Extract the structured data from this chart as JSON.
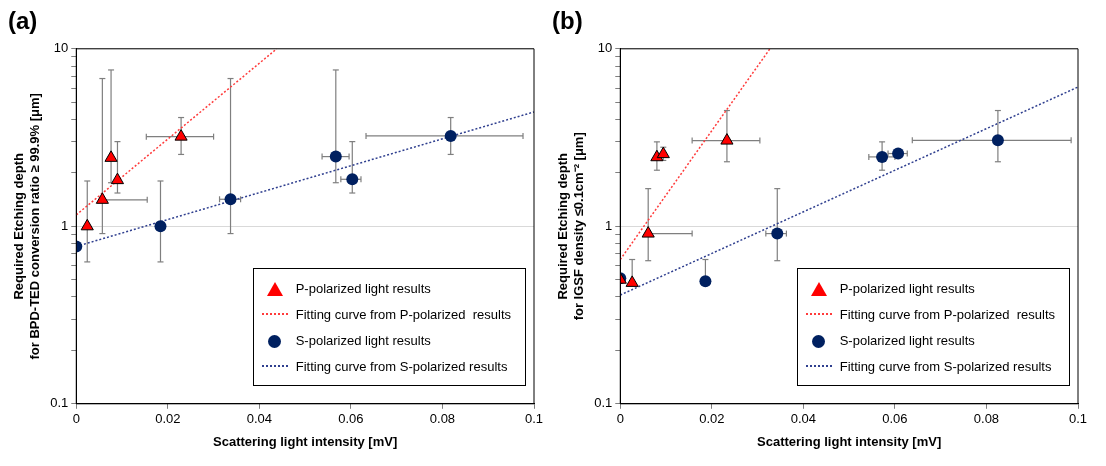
{
  "chart_data": [
    {
      "type": "scatter",
      "title": "(a)",
      "xlabel": "Scattering light intensity [mV]",
      "ylabel": "Required Etching depth\nfor BPD-TED conversion ratio ≥ 99.9% [μm]",
      "log": "y",
      "grid": "y",
      "legend": "bottom right",
      "xlim": [
        0,
        0.1
      ],
      "xticks": [
        0,
        0.02,
        0.04,
        0.06,
        0.08,
        0.1
      ],
      "ylim": [
        0.1,
        10
      ],
      "yticks": [
        0.1,
        {
          "value": 0.2,
          "label": null
        },
        {
          "value": 0.3,
          "label": null
        },
        {
          "value": 0.4,
          "label": null
        },
        {
          "value": 0.5,
          "label": null
        },
        {
          "value": 0.6,
          "label": null
        },
        {
          "value": 0.7,
          "label": null
        },
        {
          "value": 0.8,
          "label": null
        },
        {
          "value": 0.9,
          "label": null
        },
        1,
        {
          "value": 2,
          "label": null
        },
        {
          "value": 3,
          "label": null
        },
        {
          "value": 4,
          "label": null
        },
        {
          "value": 5,
          "label": null
        },
        {
          "value": 6,
          "label": null
        },
        {
          "value": 7,
          "label": null
        },
        {
          "value": 8,
          "label": null
        },
        {
          "value": 9,
          "label": null
        },
        10
      ],
      "series": [
        {
          "name": "P-polarized light results",
          "type": "scatter",
          "marker": "triangle",
          "color": "#ff0000",
          "x": [
            0.0024,
            0.0057,
            0.0076,
            0.009,
            0.0229
          ],
          "values": [
            1.0,
            1.41,
            2.43,
            1.82,
            3.2
          ],
          "errors": [
            [
              0.63,
              1.8
            ],
            [
              0.91,
              6.8
            ],
            [
              1.76,
              7.6
            ],
            [
              1.54,
              3.0
            ],
            [
              2.54,
              4.1
            ]
          ],
          "xerrors": [
            null,
            [
              0.0057,
              0.0155
            ],
            null,
            null,
            [
              0.0153,
              0.03
            ]
          ]
        },
        {
          "name": "Fitting curve from P-polarized  results",
          "type": "line",
          "marker": "none",
          "line_style": "dotted",
          "color": "#ff3b3b",
          "x": [
            0,
            0.0438
          ],
          "values": [
            1.16,
            10
          ]
        },
        {
          "name": "S-polarized light results",
          "type": "scatter",
          "marker": "circle",
          "color": "#002060",
          "x": [
            0,
            0.0184,
            0.0337,
            0.0567,
            0.0603,
            0.0818
          ],
          "values": [
            0.77,
            1.0,
            1.42,
            2.47,
            1.84,
            3.23
          ],
          "errors": [
            null,
            [
              0.63,
              1.8
            ],
            [
              0.91,
              6.8
            ],
            [
              1.76,
              7.6
            ],
            [
              1.54,
              3.0
            ],
            [
              2.54,
              4.1
            ]
          ],
          "xerrors": [
            null,
            null,
            [
              0.0313,
              0.0359
            ],
            [
              0.0537,
              0.0596
            ],
            [
              0.0578,
              0.0622
            ],
            [
              0.0633,
              0.0976
            ]
          ]
        },
        {
          "name": "Fitting curve from S-polarized results",
          "type": "line",
          "marker": "none",
          "line_style": "dotted",
          "color": "#2f3f8f",
          "x": [
            0,
            0.1
          ],
          "values": [
            0.77,
            4.41
          ]
        }
      ]
    },
    {
      "type": "scatter",
      "title": "(b)",
      "xlabel": "Scattering light intensity [mV]",
      "ylabel": "Required Etching depth\nfor IGSF density ≤0.1cm⁻² [μm]",
      "log": "y",
      "grid": "y",
      "legend": "bottom right",
      "xlim": [
        0,
        0.1
      ],
      "xticks": [
        0,
        0.02,
        0.04,
        0.06,
        0.08,
        0.1
      ],
      "ylim": [
        0.1,
        10
      ],
      "yticks": [
        0.1,
        {
          "value": 0.2,
          "label": null
        },
        {
          "value": 0.3,
          "label": null
        },
        {
          "value": 0.4,
          "label": null
        },
        {
          "value": 0.5,
          "label": null
        },
        {
          "value": 0.6,
          "label": null
        },
        {
          "value": 0.7,
          "label": null
        },
        {
          "value": 0.8,
          "label": null
        },
        {
          "value": 0.9,
          "label": null
        },
        1,
        {
          "value": 2,
          "label": null
        },
        {
          "value": 3,
          "label": null
        },
        {
          "value": 4,
          "label": null
        },
        {
          "value": 5,
          "label": null
        },
        {
          "value": 6,
          "label": null
        },
        {
          "value": 7,
          "label": null
        },
        {
          "value": 8,
          "label": null
        },
        {
          "value": 9,
          "label": null
        },
        10
      ],
      "series": [
        {
          "name": "P-polarized light results",
          "type": "scatter",
          "marker": "triangle",
          "color": "#ff0000",
          "x": [
            0,
            0.0026,
            0.0061,
            0.008,
            0.0094,
            0.0233
          ],
          "values": [
            0.5,
            0.48,
            0.91,
            2.45,
            2.55,
            3.04
          ],
          "errors": [
            null,
            [
              0.48,
              0.65
            ],
            [
              0.64,
              1.63
            ],
            [
              2.07,
              2.99
            ],
            [
              2.35,
              2.79
            ],
            [
              2.31,
              4.49
            ]
          ],
          "xerrors": [
            null,
            null,
            [
              0.0061,
              0.0157
            ],
            null,
            null,
            [
              0.0157,
              0.0305
            ]
          ]
        },
        {
          "name": "Fitting curve from P-polarized  results",
          "type": "line",
          "marker": "none",
          "line_style": "dotted",
          "color": "#ff3b3b",
          "x": [
            0,
            0.0327
          ],
          "values": [
            0.65,
            10
          ]
        },
        {
          "name": "S-polarized light results",
          "type": "scatter",
          "marker": "circle",
          "color": "#002060",
          "x": [
            0,
            0.0186,
            0.0343,
            0.0572,
            0.0607,
            0.0825
          ],
          "values": [
            0.51,
            0.49,
            0.91,
            2.46,
            2.57,
            3.05
          ],
          "errors": [
            null,
            [
              0.49,
              0.65
            ],
            [
              0.64,
              1.63
            ],
            [
              2.07,
              2.99
            ],
            null,
            [
              2.31,
              4.49
            ]
          ],
          "xerrors": [
            null,
            null,
            [
              0.0318,
              0.0363
            ],
            [
              0.0543,
              0.06
            ],
            [
              0.0585,
              0.0627
            ],
            [
              0.0638,
              0.0985
            ]
          ]
        },
        {
          "name": "Fitting curve from S-polarized results",
          "type": "line",
          "marker": "none",
          "line_style": "dotted",
          "color": "#2f3f8f",
          "x": [
            0,
            0.1
          ],
          "values": [
            0.41,
            6.09
          ]
        }
      ]
    }
  ]
}
